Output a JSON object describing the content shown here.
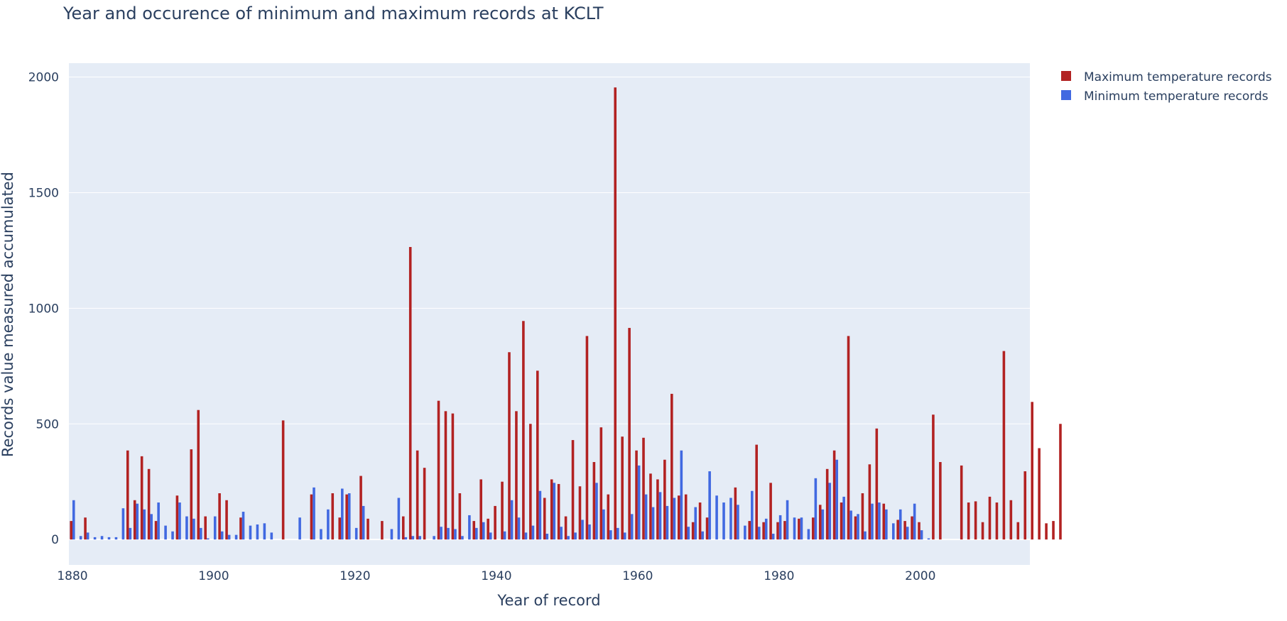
{
  "chart_data": {
    "type": "bar",
    "title": "Year and occurence of minimum and maximum records at KCLT",
    "xlabel": "Year of record",
    "ylabel": "Records value measured accumulated",
    "xlim": [
      1879.5,
      2015.5
    ],
    "ylim": [
      -110,
      2060
    ],
    "x_ticks": [
      1880,
      1900,
      1920,
      1940,
      1960,
      1980,
      2000
    ],
    "y_ticks": [
      0,
      500,
      1000,
      1500,
      2000
    ],
    "grid": true,
    "legend_position": "top-right",
    "series": [
      {
        "name": "Maximum temperature records",
        "color": "#b22222",
        "values": [
          [
            1880,
            80
          ],
          [
            1882,
            95
          ],
          [
            1888,
            385
          ],
          [
            1889,
            170
          ],
          [
            1890,
            360
          ],
          [
            1891,
            305
          ],
          [
            1892,
            80
          ],
          [
            1895,
            190
          ],
          [
            1897,
            390
          ],
          [
            1898,
            560
          ],
          [
            1899,
            100
          ],
          [
            1901,
            200
          ],
          [
            1902,
            170
          ],
          [
            1904,
            95
          ],
          [
            1910,
            515
          ],
          [
            1914,
            195
          ],
          [
            1917,
            200
          ],
          [
            1918,
            95
          ],
          [
            1919,
            195
          ],
          [
            1921,
            275
          ],
          [
            1922,
            90
          ],
          [
            1924,
            80
          ],
          [
            1927,
            100
          ],
          [
            1928,
            1265
          ],
          [
            1929,
            385
          ],
          [
            1930,
            310
          ],
          [
            1932,
            600
          ],
          [
            1933,
            555
          ],
          [
            1934,
            545
          ],
          [
            1935,
            200
          ],
          [
            1937,
            80
          ],
          [
            1938,
            260
          ],
          [
            1939,
            90
          ],
          [
            1940,
            145
          ],
          [
            1941,
            250
          ],
          [
            1942,
            810
          ],
          [
            1943,
            555
          ],
          [
            1944,
            945
          ],
          [
            1945,
            500
          ],
          [
            1946,
            730
          ],
          [
            1947,
            180
          ],
          [
            1948,
            260
          ],
          [
            1949,
            240
          ],
          [
            1950,
            100
          ],
          [
            1951,
            430
          ],
          [
            1952,
            230
          ],
          [
            1953,
            880
          ],
          [
            1954,
            335
          ],
          [
            1955,
            485
          ],
          [
            1956,
            195
          ],
          [
            1957,
            1955
          ],
          [
            1958,
            445
          ],
          [
            1959,
            915
          ],
          [
            1960,
            385
          ],
          [
            1961,
            440
          ],
          [
            1962,
            285
          ],
          [
            1963,
            260
          ],
          [
            1964,
            345
          ],
          [
            1965,
            630
          ],
          [
            1966,
            190
          ],
          [
            1967,
            195
          ],
          [
            1968,
            75
          ],
          [
            1969,
            160
          ],
          [
            1970,
            95
          ],
          [
            1974,
            225
          ],
          [
            1976,
            80
          ],
          [
            1977,
            410
          ],
          [
            1978,
            75
          ],
          [
            1979,
            245
          ],
          [
            1980,
            75
          ],
          [
            1981,
            80
          ],
          [
            1983,
            90
          ],
          [
            1985,
            95
          ],
          [
            1986,
            150
          ],
          [
            1987,
            305
          ],
          [
            1988,
            385
          ],
          [
            1989,
            160
          ],
          [
            1990,
            880
          ],
          [
            1991,
            100
          ],
          [
            1992,
            200
          ],
          [
            1993,
            325
          ],
          [
            1994,
            480
          ],
          [
            1995,
            155
          ],
          [
            1997,
            85
          ],
          [
            1998,
            80
          ],
          [
            1999,
            100
          ],
          [
            2000,
            75
          ],
          [
            2002,
            540
          ],
          [
            2003,
            335
          ],
          [
            2006,
            320
          ],
          [
            2007,
            160
          ],
          [
            2008,
            165
          ],
          [
            2009,
            75
          ],
          [
            2010,
            185
          ],
          [
            2011,
            160
          ],
          [
            2012,
            815
          ],
          [
            2013,
            170
          ],
          [
            2014,
            75
          ],
          [
            2015,
            295
          ],
          [
            2016,
            595
          ],
          [
            2017,
            395
          ],
          [
            2018,
            70
          ],
          [
            2019,
            80
          ],
          [
            2020,
            500
          ]
        ]
      },
      {
        "name": "Minimum temperature records",
        "color": "#4169e1",
        "values": [
          [
            1880,
            170
          ],
          [
            1881,
            15
          ],
          [
            1882,
            30
          ],
          [
            1883,
            10
          ],
          [
            1884,
            15
          ],
          [
            1885,
            10
          ],
          [
            1886,
            10
          ],
          [
            1887,
            135
          ],
          [
            1888,
            50
          ],
          [
            1889,
            155
          ],
          [
            1890,
            130
          ],
          [
            1891,
            110
          ],
          [
            1892,
            160
          ],
          [
            1893,
            60
          ],
          [
            1894,
            35
          ],
          [
            1895,
            160
          ],
          [
            1896,
            100
          ],
          [
            1897,
            90
          ],
          [
            1898,
            50
          ],
          [
            1899,
            5
          ],
          [
            1900,
            100
          ],
          [
            1901,
            35
          ],
          [
            1902,
            20
          ],
          [
            1903,
            20
          ],
          [
            1904,
            120
          ],
          [
            1905,
            60
          ],
          [
            1906,
            65
          ],
          [
            1907,
            70
          ],
          [
            1908,
            30
          ],
          [
            1912,
            95
          ],
          [
            1914,
            225
          ],
          [
            1915,
            45
          ],
          [
            1916,
            130
          ],
          [
            1918,
            220
          ],
          [
            1919,
            200
          ],
          [
            1920,
            50
          ],
          [
            1921,
            145
          ],
          [
            1925,
            45
          ],
          [
            1926,
            180
          ],
          [
            1927,
            10
          ],
          [
            1928,
            15
          ],
          [
            1929,
            15
          ],
          [
            1931,
            15
          ],
          [
            1932,
            55
          ],
          [
            1933,
            50
          ],
          [
            1934,
            45
          ],
          [
            1935,
            15
          ],
          [
            1936,
            105
          ],
          [
            1937,
            50
          ],
          [
            1938,
            75
          ],
          [
            1939,
            30
          ],
          [
            1941,
            35
          ],
          [
            1942,
            170
          ],
          [
            1943,
            95
          ],
          [
            1944,
            30
          ],
          [
            1945,
            60
          ],
          [
            1946,
            210
          ],
          [
            1947,
            25
          ],
          [
            1948,
            245
          ],
          [
            1949,
            55
          ],
          [
            1950,
            15
          ],
          [
            1951,
            30
          ],
          [
            1952,
            85
          ],
          [
            1953,
            65
          ],
          [
            1954,
            245
          ],
          [
            1955,
            130
          ],
          [
            1956,
            40
          ],
          [
            1957,
            50
          ],
          [
            1958,
            30
          ],
          [
            1959,
            110
          ],
          [
            1960,
            320
          ],
          [
            1961,
            195
          ],
          [
            1962,
            140
          ],
          [
            1963,
            205
          ],
          [
            1964,
            145
          ],
          [
            1965,
            180
          ],
          [
            1966,
            385
          ],
          [
            1967,
            55
          ],
          [
            1968,
            140
          ],
          [
            1969,
            35
          ],
          [
            1970,
            295
          ],
          [
            1971,
            190
          ],
          [
            1972,
            160
          ],
          [
            1973,
            180
          ],
          [
            1974,
            150
          ],
          [
            1975,
            60
          ],
          [
            1976,
            210
          ],
          [
            1977,
            55
          ],
          [
            1978,
            90
          ],
          [
            1979,
            25
          ],
          [
            1980,
            105
          ],
          [
            1981,
            170
          ],
          [
            1982,
            95
          ],
          [
            1983,
            95
          ],
          [
            1984,
            45
          ],
          [
            1985,
            265
          ],
          [
            1986,
            130
          ],
          [
            1987,
            245
          ],
          [
            1988,
            345
          ],
          [
            1989,
            185
          ],
          [
            1990,
            125
          ],
          [
            1991,
            110
          ],
          [
            1992,
            35
          ],
          [
            1993,
            155
          ],
          [
            1994,
            160
          ],
          [
            1995,
            130
          ],
          [
            1996,
            70
          ],
          [
            1997,
            130
          ],
          [
            1998,
            55
          ],
          [
            1999,
            155
          ],
          [
            2000,
            40
          ],
          [
            2001,
            5
          ]
        ]
      }
    ]
  }
}
